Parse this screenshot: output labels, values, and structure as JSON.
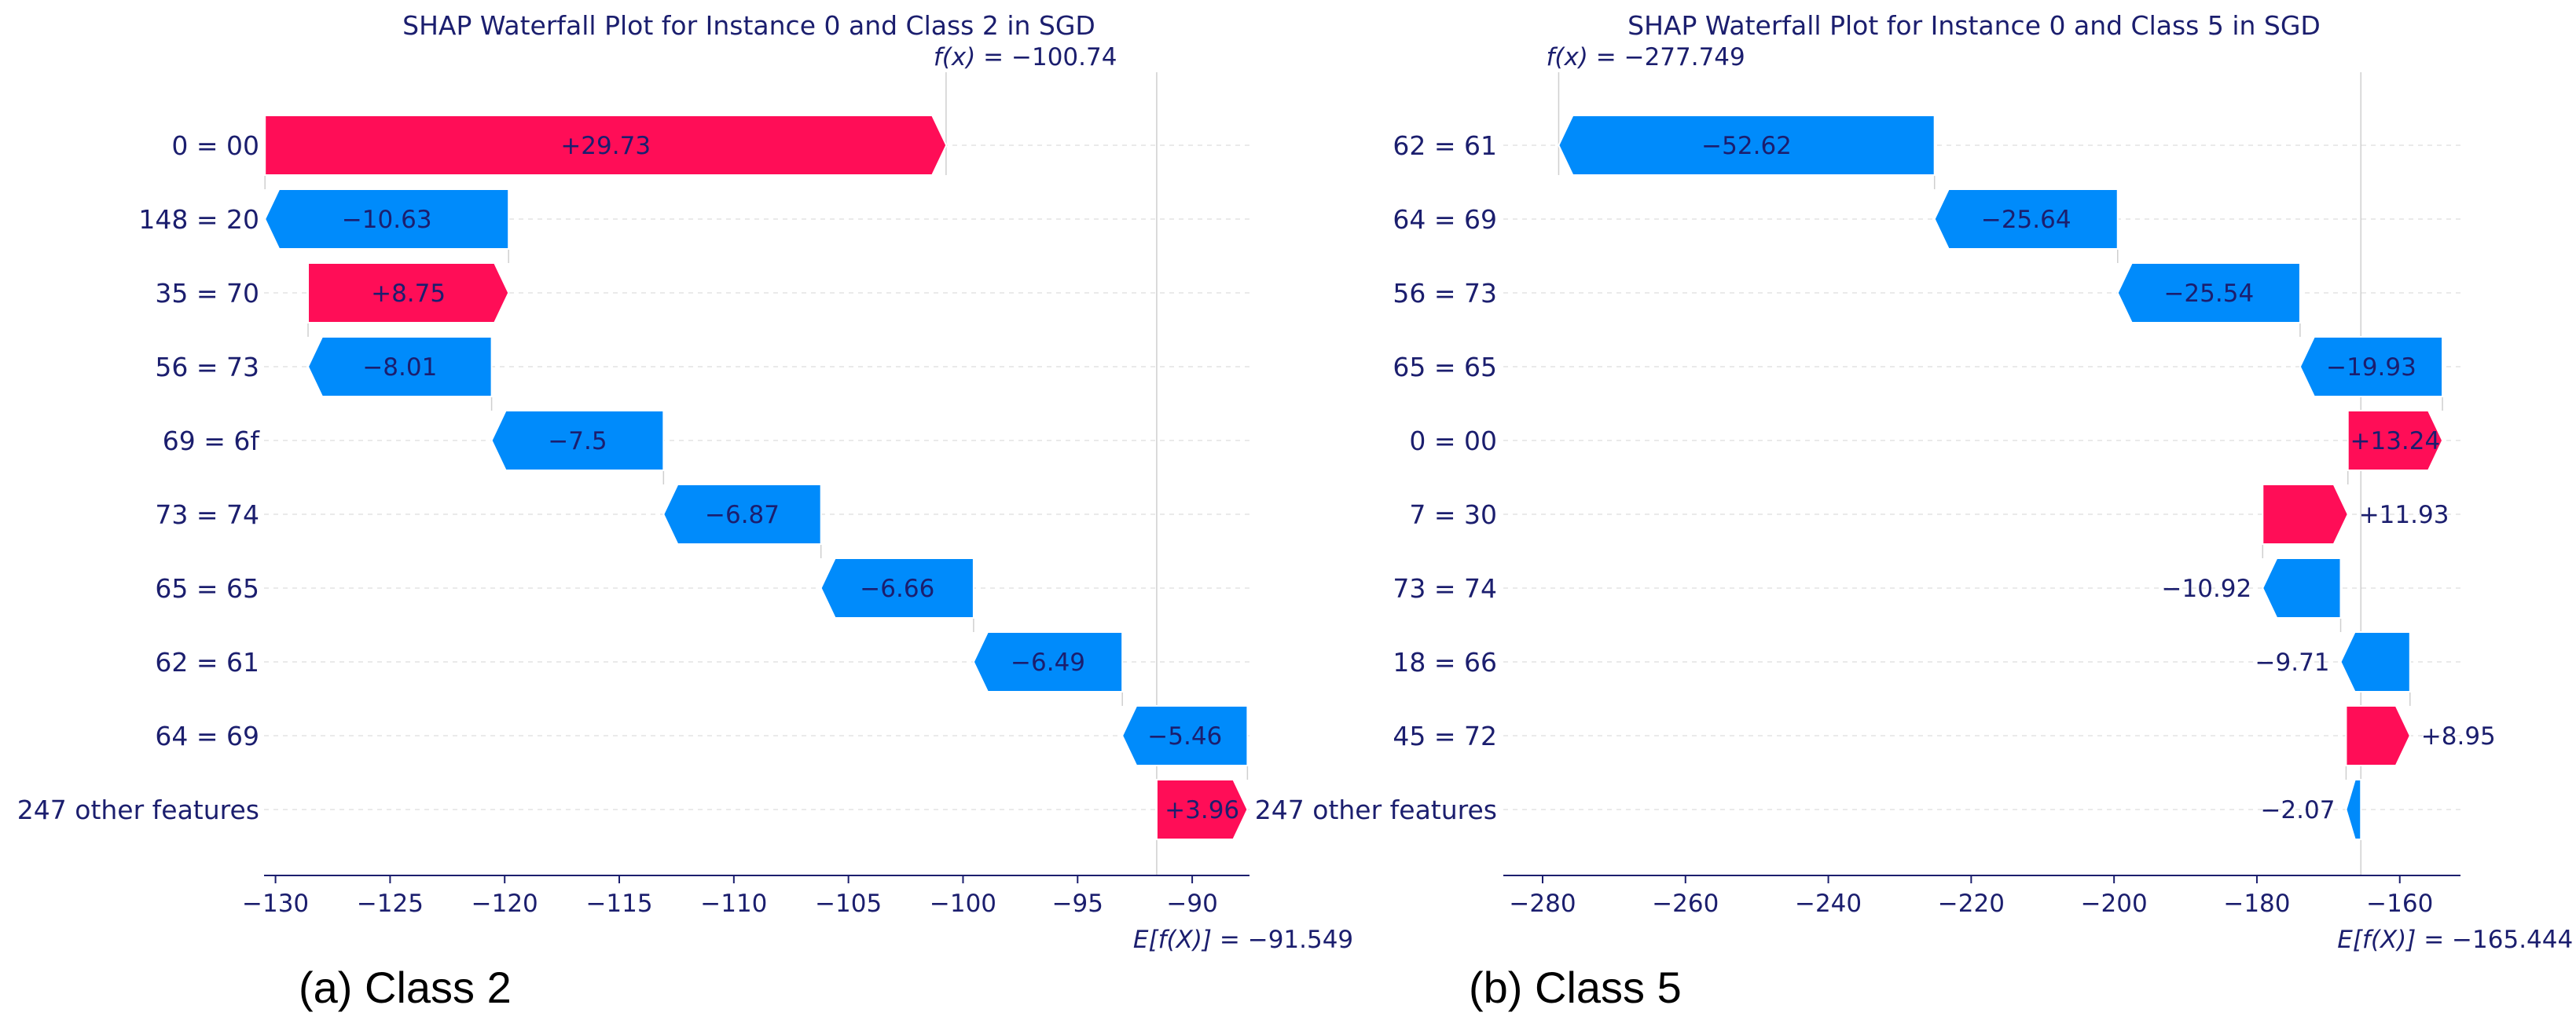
{
  "colors": {
    "text": "#1b1e6e",
    "positive": "#ff0d57",
    "negative": "#008bfb",
    "axis": "#1b1e6e",
    "grid": "#e4e4e4",
    "vline": "#cfcfcf"
  },
  "chart_data": [
    {
      "type": "waterfall",
      "title": "SHAP Waterfall Plot for Instance 0 and Class 2 in SGD",
      "caption": "(a) Class 2",
      "fx_label": "f(x)",
      "fx_value": "= −100.74",
      "fx": -100.74,
      "efx_label": "E[f(X)]",
      "efx_value": "= −91.549",
      "efx": -91.549,
      "xlim": [
        -130.5,
        -87.5
      ],
      "xticks": [
        -130,
        -125,
        -120,
        -115,
        -110,
        -105,
        -100,
        -95,
        -90
      ],
      "xtick_labels": [
        "−130",
        "−125",
        "−120",
        "−115",
        "−110",
        "−105",
        "−100",
        "−95",
        "−90"
      ],
      "features": [
        "0 = 00",
        "148 = 20",
        "35 = 70",
        "56 = 73",
        "69 = 6f",
        "73 = 74",
        "65 = 65",
        "62 = 61",
        "64 = 69",
        "247 other features"
      ],
      "values": [
        29.73,
        -10.63,
        8.75,
        -8.01,
        -7.5,
        -6.87,
        -6.66,
        -6.49,
        -5.46,
        3.96
      ],
      "value_labels": [
        "+29.73",
        "−10.63",
        "+8.75",
        "−8.01",
        "−7.5",
        "−6.87",
        "−6.66",
        "−6.49",
        "−5.46",
        "+3.96"
      ],
      "label_inside": [
        true,
        true,
        true,
        true,
        true,
        true,
        true,
        true,
        true,
        true
      ]
    },
    {
      "type": "waterfall",
      "title": "SHAP Waterfall Plot for Instance 0 and Class 5 in SGD",
      "caption": "(b) Class 5",
      "fx_label": "f(x)",
      "fx_value": "= −277.749",
      "fx": -277.749,
      "efx_label": "E[f(X)]",
      "efx_value": "= −165.444",
      "efx": -165.444,
      "xlim": [
        -285.5,
        -151.5
      ],
      "xticks": [
        -280,
        -260,
        -240,
        -220,
        -200,
        -180,
        -160
      ],
      "xtick_labels": [
        "−280",
        "−260",
        "−240",
        "−220",
        "−200",
        "−180",
        "−160"
      ],
      "features": [
        "62 = 61",
        "64 = 69",
        "56 = 73",
        "65 = 65",
        "0 = 00",
        "7 = 30",
        "73 = 74",
        "18 = 66",
        "45 = 72",
        "247 other features"
      ],
      "values": [
        -52.62,
        -25.64,
        -25.54,
        -19.93,
        13.24,
        11.93,
        -10.92,
        -9.71,
        8.95,
        -2.07
      ],
      "value_labels": [
        "−52.62",
        "−25.64",
        "−25.54",
        "−19.93",
        "+13.24",
        "+11.93",
        "−10.92",
        "−9.71",
        "+8.95",
        "−2.07"
      ],
      "label_inside": [
        true,
        true,
        true,
        true,
        true,
        false,
        false,
        false,
        false,
        false
      ]
    }
  ]
}
